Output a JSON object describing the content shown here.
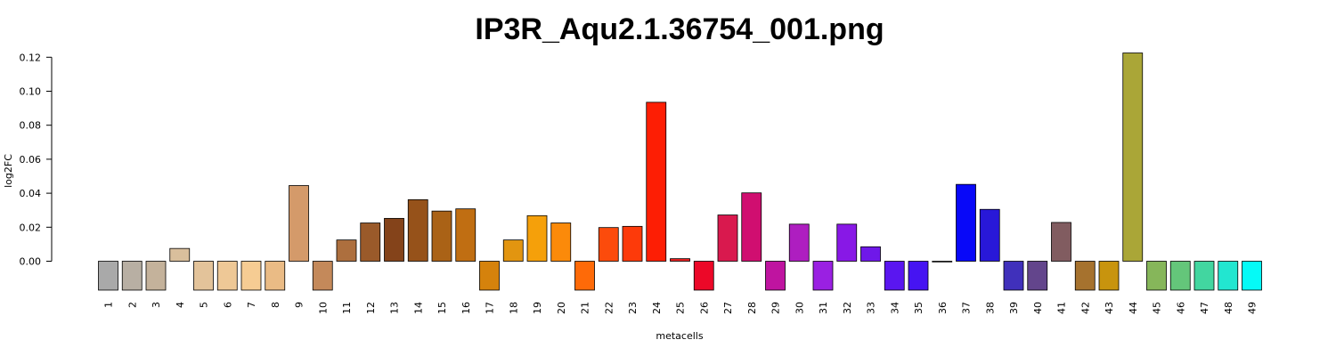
{
  "chart_data": {
    "type": "bar",
    "title": "IP3R_Aqu2.1.36754_001.png",
    "xlabel": "metacells",
    "ylabel": "log2FC",
    "ylim": [
      -0.017,
      0.124
    ],
    "yticks": [
      "0.00",
      "0.02",
      "0.04",
      "0.06",
      "0.08",
      "0.10",
      "0.12"
    ],
    "grid": false,
    "categories": [
      "1",
      "2",
      "3",
      "4",
      "5",
      "6",
      "7",
      "8",
      "9",
      "10",
      "11",
      "12",
      "13",
      "14",
      "15",
      "16",
      "17",
      "18",
      "19",
      "20",
      "21",
      "22",
      "23",
      "24",
      "25",
      "26",
      "27",
      "28",
      "29",
      "30",
      "31",
      "32",
      "33",
      "34",
      "35",
      "36",
      "37",
      "38",
      "39",
      "40",
      "41",
      "42",
      "43",
      "44",
      "45",
      "46",
      "47",
      "48",
      "49"
    ],
    "values": [
      -0.017,
      -0.017,
      -0.017,
      0.0075,
      -0.017,
      -0.017,
      -0.017,
      -0.017,
      0.0445,
      -0.017,
      0.0125,
      0.0225,
      0.0252,
      0.0362,
      0.0295,
      0.0308,
      -0.017,
      0.0125,
      0.0268,
      0.0225,
      -0.017,
      0.0198,
      0.0205,
      0.0935,
      0.0015,
      -0.017,
      0.0272,
      0.0402,
      -0.017,
      0.0218,
      -0.017,
      0.0218,
      0.0085,
      -0.017,
      -0.017,
      -0.0002,
      0.0452,
      0.0305,
      -0.017,
      -0.017,
      0.0228,
      -0.017,
      -0.017,
      0.1225,
      -0.017,
      -0.017,
      -0.017,
      -0.017,
      -0.017
    ],
    "colors": [
      "#A9A9A9",
      "#B8AFA3",
      "#C4B29B",
      "#D9BF9C",
      "#E3C39A",
      "#EEC896",
      "#F6CC93",
      "#EABB85",
      "#D49A6A",
      "#C4895A",
      "#AD6F3E",
      "#9A5A2A",
      "#84431A",
      "#96521A",
      "#AA6216",
      "#C06E12",
      "#D5820C",
      "#E29510",
      "#F5A00A",
      "#FB8A0A",
      "#FE6A08",
      "#FC4B0C",
      "#FD3A0A",
      "#FD1E04",
      "#E82020",
      "#EC0828",
      "#D9194E",
      "#D00E70",
      "#BF14A0",
      "#AE1EC0",
      "#9A20E2",
      "#8818E6",
      "#6F18E9",
      "#5A16F0",
      "#4614F2",
      "#3E10F4",
      "#0808F8",
      "#2818D8",
      "#4030BB",
      "#63458C",
      "#815C60",
      "#A6722E",
      "#C8940E",
      "#AAA637",
      "#86B65A",
      "#64C67A",
      "#42D6A0",
      "#22E6D0",
      "#05FAF7"
    ]
  }
}
